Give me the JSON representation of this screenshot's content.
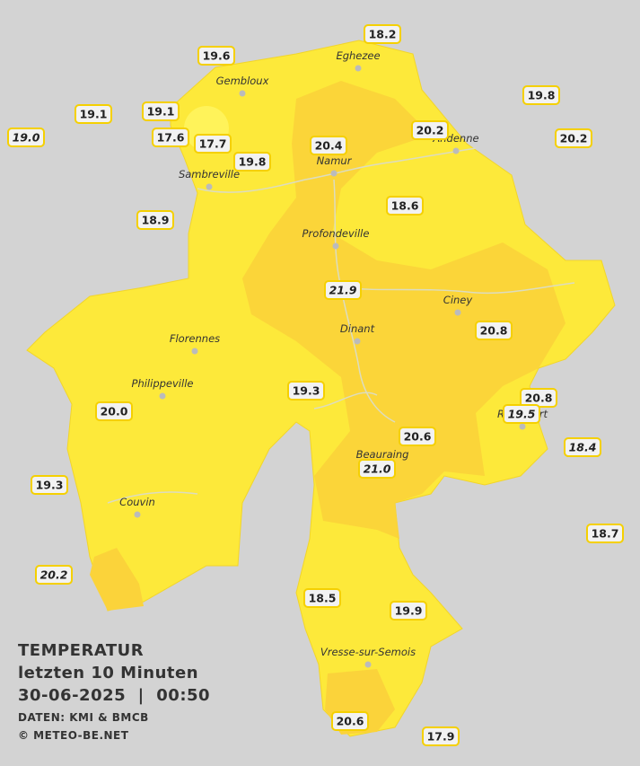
{
  "header": {
    "title": "TEMPERATUR",
    "subtitle": "letzten 10 Minuten",
    "timestamp": "30-06-2025  |  00:50",
    "source": "DATEN: KMI & BMCB",
    "copyright": "© METEO-BE.NET"
  },
  "cities": [
    "Eghezee",
    "Gembloux",
    "Andenne",
    "Namur",
    "Sambreville",
    "Profondeville",
    "Ciney",
    "Dinant",
    "Florennes",
    "Philippeville",
    "Rochefort",
    "Beauraing",
    "Couvin",
    "Vresse-sur-Semois"
  ],
  "stations": [
    {
      "label": "19.6",
      "italic": false
    },
    {
      "label": "18.2",
      "italic": false
    },
    {
      "label": "19.8",
      "italic": false
    },
    {
      "label": "19.1",
      "italic": false
    },
    {
      "label": "19.1",
      "italic": false
    },
    {
      "label": "20.2",
      "italic": false
    },
    {
      "label": "19.0",
      "italic": true
    },
    {
      "label": "17.6",
      "italic": false
    },
    {
      "label": "17.7",
      "italic": false
    },
    {
      "label": "20.4",
      "italic": false
    },
    {
      "label": "20.2",
      "italic": false
    },
    {
      "label": "19.8",
      "italic": false
    },
    {
      "label": "18.6",
      "italic": false
    },
    {
      "label": "18.9",
      "italic": false
    },
    {
      "label": "21.9",
      "italic": true
    },
    {
      "label": "20.8",
      "italic": false
    },
    {
      "label": "19.3",
      "italic": false
    },
    {
      "label": "20.0",
      "italic": false
    },
    {
      "label": "20.8",
      "italic": false
    },
    {
      "label": "19.5",
      "italic": true
    },
    {
      "label": "20.6",
      "italic": false
    },
    {
      "label": "18.4",
      "italic": true
    },
    {
      "label": "21.0",
      "italic": true
    },
    {
      "label": "19.3",
      "italic": false
    },
    {
      "label": "18.7",
      "italic": false
    },
    {
      "label": "20.2",
      "italic": true
    },
    {
      "label": "18.5",
      "italic": false
    },
    {
      "label": "19.9",
      "italic": false
    },
    {
      "label": "20.6",
      "italic": false
    },
    {
      "label": "17.9",
      "italic": false
    }
  ]
}
